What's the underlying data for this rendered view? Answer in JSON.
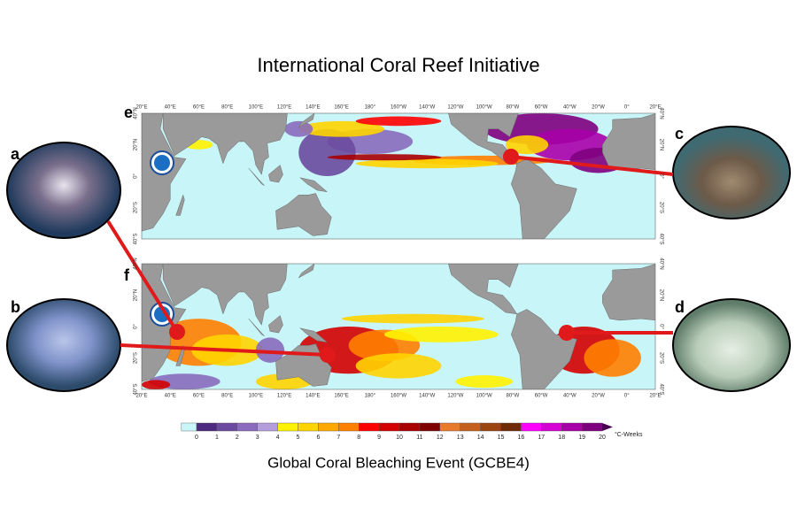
{
  "header": {
    "title": "International Coral Reef Initiative"
  },
  "photos": [
    {
      "label": "a"
    },
    {
      "label": "b"
    },
    {
      "label": "c"
    },
    {
      "label": "d"
    }
  ],
  "maps": [
    {
      "label": "e"
    },
    {
      "label": "f"
    }
  ],
  "longitude_labels": [
    "20°E",
    "40°E",
    "60°E",
    "80°E",
    "100°E",
    "120°E",
    "140°E",
    "160°E",
    "180°",
    "160°W",
    "140°W",
    "120°W",
    "100°W",
    "80°W",
    "60°W",
    "40°W",
    "20°W",
    "0°",
    "20°E"
  ],
  "latitude_labels": [
    "40°N",
    "20°N",
    "0°",
    "20°S",
    "40°S"
  ],
  "colorbar": {
    "ticks": [
      0,
      1,
      2,
      3,
      4,
      5,
      6,
      7,
      8,
      9,
      10,
      11,
      12,
      13,
      14,
      15,
      16,
      17,
      18,
      19,
      20
    ],
    "unit": "°C-Weeks",
    "colors": [
      "#c8f5f8",
      "#4b2a7f",
      "#6a4a9e",
      "#8a6bbd",
      "#b39ddb",
      "#fff200",
      "#ffd400",
      "#ffa800",
      "#ff7f00",
      "#ff0000",
      "#d40000",
      "#a80000",
      "#7f0000",
      "#e87a2c",
      "#c4601e",
      "#9a4512",
      "#6e2b06",
      "#ff00ff",
      "#d400d4",
      "#a800a8",
      "#7f007f",
      "#4a0050"
    ]
  },
  "caption": "Global Coral Bleaching Event (GCBE4)"
}
